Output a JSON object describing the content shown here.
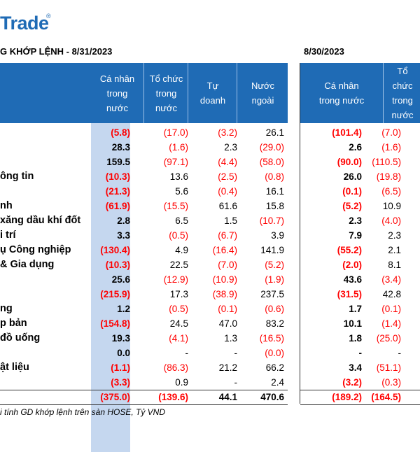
{
  "logo": {
    "text": "Trade",
    "mark": "®"
  },
  "left": {
    "title": "G KHỚP LỆNH - 8/31/2023",
    "headers": [
      [
        "Cá nhân",
        "trong",
        "nước"
      ],
      [
        "Tổ chức",
        "trong",
        "nước"
      ],
      [
        "Tự",
        "doanh"
      ],
      [
        "Nước",
        "ngoài"
      ]
    ],
    "rows": [
      {
        "label": "",
        "v": [
          "(5.8)",
          "(17.0)",
          "(3.2)",
          "26.1"
        ]
      },
      {
        "label": "",
        "v": [
          "28.3",
          "(1.6)",
          "2.3",
          "(29.0)"
        ]
      },
      {
        "label": "",
        "v": [
          "159.5",
          "(97.1)",
          "(4.4)",
          "(58.0)"
        ]
      },
      {
        "label": "ông tin",
        "v": [
          "(10.3)",
          "13.6",
          "(2.5)",
          "(0.8)"
        ]
      },
      {
        "label": "",
        "v": [
          "(21.3)",
          "5.6",
          "(0.4)",
          "16.1"
        ]
      },
      {
        "label": "nh",
        "v": [
          "(61.9)",
          "(15.5)",
          "61.6",
          "15.8"
        ]
      },
      {
        "label": "xăng dầu khí đốt",
        "v": [
          "2.8",
          "6.5",
          "1.5",
          "(10.7)"
        ]
      },
      {
        "label": "i trí",
        "v": [
          "3.3",
          "(0.5)",
          "(6.7)",
          "3.9"
        ]
      },
      {
        "label": "ụ Công nghiệp",
        "v": [
          "(130.4)",
          "4.9",
          "(16.4)",
          "141.9"
        ]
      },
      {
        "label": "& Gia dụng",
        "v": [
          "(10.3)",
          "22.5",
          "(7.0)",
          "(5.2)"
        ]
      },
      {
        "label": "",
        "v": [
          "25.6",
          "(12.9)",
          "(10.9)",
          "(1.9)"
        ]
      },
      {
        "label": "",
        "v": [
          "(215.9)",
          "17.3",
          "(38.9)",
          "237.5"
        ]
      },
      {
        "label": "ng",
        "v": [
          "1.2",
          "(0.5)",
          "(0.1)",
          "(0.6)"
        ]
      },
      {
        "label": "p bản",
        "v": [
          "(154.8)",
          "24.5",
          "47.0",
          "83.2"
        ]
      },
      {
        "label": "đồ uống",
        "v": [
          "19.3",
          "(4.1)",
          "1.3",
          "(16.5)"
        ]
      },
      {
        "label": "",
        "v": [
          "0.0",
          "-",
          "-",
          "(0.0)"
        ]
      },
      {
        "label": "ật liệu",
        "v": [
          "(1.1)",
          "(86.3)",
          "21.2",
          "66.2"
        ]
      },
      {
        "label": "",
        "v": [
          "(3.3)",
          "0.9",
          "-",
          "2.4"
        ]
      }
    ],
    "total": [
      "(375.0)",
      "(139.6)",
      "44.1",
      "470.6"
    ]
  },
  "right": {
    "title": "8/30/2023",
    "headers": [
      [
        "Cá nhân",
        "trong nước"
      ],
      [
        "Tổ",
        "chức",
        "trong",
        "nước"
      ]
    ],
    "rows": [
      [
        "(101.4)",
        "(7.0)"
      ],
      [
        "2.6",
        "(1.6)"
      ],
      [
        "(90.0)",
        "(110.5)"
      ],
      [
        "26.0",
        "(19.8)"
      ],
      [
        "(0.1)",
        "(6.5)"
      ],
      [
        "(5.2)",
        "10.9"
      ],
      [
        "2.3",
        "(4.0)"
      ],
      [
        "7.9",
        "2.3"
      ],
      [
        "(55.2)",
        "2.1"
      ],
      [
        "(2.0)",
        "8.1"
      ],
      [
        "43.6",
        "(3.4)"
      ],
      [
        "(31.5)",
        "42.8"
      ],
      [
        "1.7",
        "(0.1)"
      ],
      [
        "10.1",
        "(1.4)"
      ],
      [
        "1.8",
        "(25.0)"
      ],
      [
        "-",
        "-"
      ],
      [
        "3.4",
        "(51.1)"
      ],
      [
        "(3.2)",
        "(0.3)"
      ]
    ],
    "total": [
      "(189.2)",
      "(164.5)"
    ]
  },
  "note": "i tính GD khớp lệnh trên sàn HOSE, Tỷ VND",
  "colors": {
    "header_bg": "#1f6bb5",
    "highlight_col": "#c5d7ef",
    "negative": "#ff0000"
  }
}
